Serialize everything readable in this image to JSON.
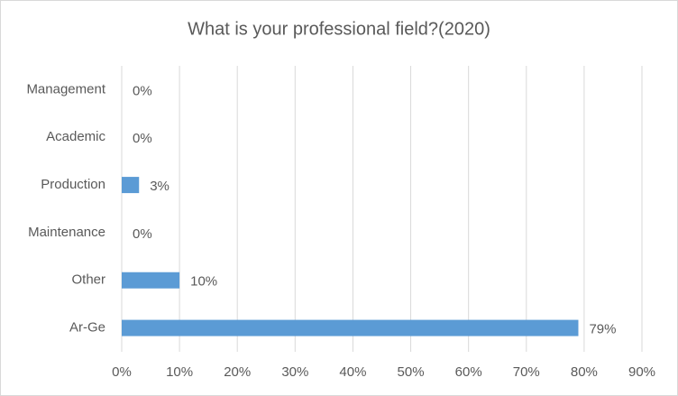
{
  "chart_data": {
    "type": "barh",
    "title": "What is your professional field?(2020)",
    "categories": [
      "Management",
      "Academic",
      "Production",
      "Maintenance",
      "Other",
      "Ar-Ge"
    ],
    "values": [
      0,
      0,
      3,
      0,
      10,
      79
    ],
    "value_labels": [
      "0%",
      "0%",
      "3%",
      "0%",
      "10%",
      "79%"
    ],
    "color": "#5b9bd5",
    "xlim": [
      0,
      90
    ],
    "xticks": [
      {
        "value": 0,
        "label": "0%"
      },
      {
        "value": 10,
        "label": "10%"
      },
      {
        "value": 20,
        "label": "20%"
      },
      {
        "value": 30,
        "label": "30%"
      },
      {
        "value": 40,
        "label": "40%"
      },
      {
        "value": 50,
        "label": "50%"
      },
      {
        "value": 60,
        "label": "60%"
      },
      {
        "value": 70,
        "label": "70%"
      },
      {
        "value": 80,
        "label": "80%"
      },
      {
        "value": 90,
        "label": "90%"
      }
    ],
    "grid": true
  }
}
